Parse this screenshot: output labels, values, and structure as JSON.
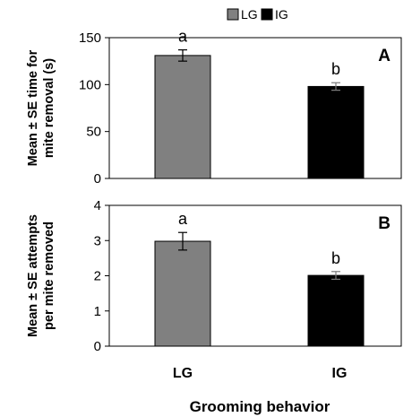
{
  "chart_data": [
    {
      "type": "bar",
      "panel_label": "A",
      "categories": [
        "LG",
        "IG"
      ],
      "values": [
        131,
        98
      ],
      "errors": [
        6,
        4
      ],
      "significance": [
        "a",
        "b"
      ],
      "colors": [
        "#808080",
        "#000000"
      ],
      "ylabel_lines": [
        "Mean ± SE time for",
        "mite removal (s)"
      ],
      "ylim": [
        0,
        150
      ],
      "yticks": [
        0,
        50,
        100,
        150
      ],
      "grid": false
    },
    {
      "type": "bar",
      "panel_label": "B",
      "categories": [
        "LG",
        "IG"
      ],
      "values": [
        2.98,
        2.01
      ],
      "errors": [
        0.25,
        0.11
      ],
      "significance": [
        "a",
        "b"
      ],
      "colors": [
        "#808080",
        "#000000"
      ],
      "ylabel_lines": [
        "Mean ± SE attempts",
        "per mite removed"
      ],
      "ylim": [
        0,
        4
      ],
      "yticks": [
        0,
        1,
        2,
        3,
        4
      ],
      "grid": false
    }
  ],
  "legend": {
    "position": "top-center",
    "items": [
      {
        "label": "LG",
        "color": "#808080"
      },
      {
        "label": "IG",
        "color": "#000000"
      }
    ]
  },
  "x_axis": {
    "tick_labels": [
      "LG",
      "IG"
    ],
    "title": "Grooming behavior"
  }
}
